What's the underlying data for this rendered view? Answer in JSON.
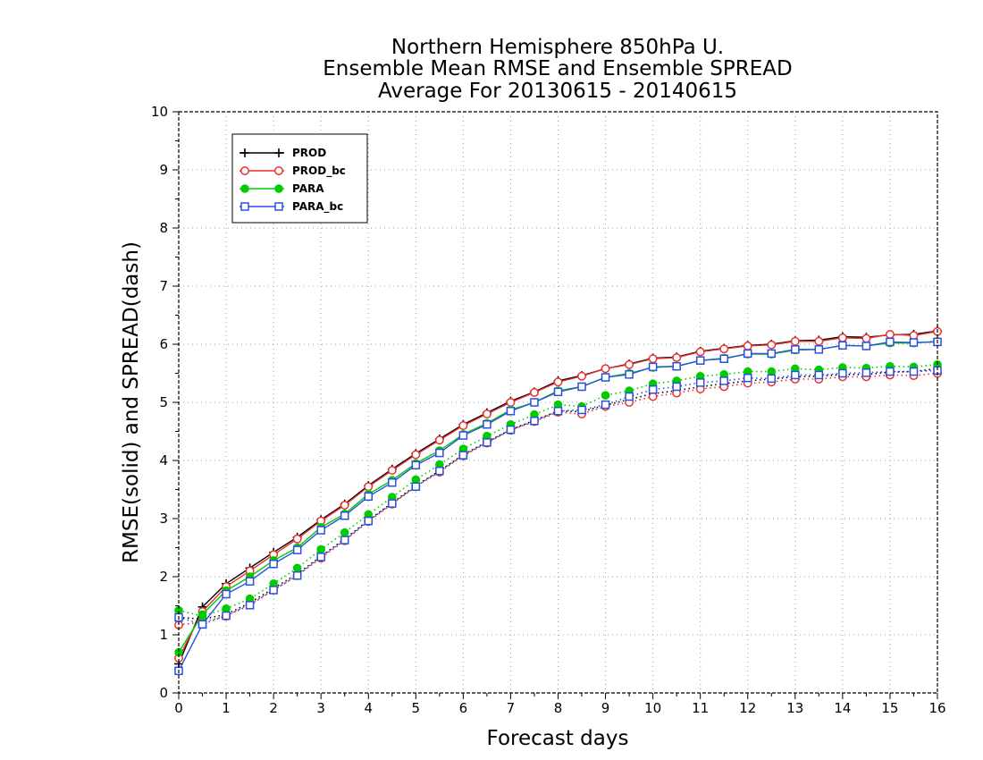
{
  "chart_data": {
    "type": "line",
    "title": [
      "Northern Hemisphere 850hPa U.",
      "Ensemble Mean RMSE and Ensemble SPREAD",
      "Average For 20130615 - 20140615"
    ],
    "xlabel": "Forecast days",
    "ylabel": "RMSE(solid) and SPREAD(dash)",
    "xlim": [
      0,
      16
    ],
    "ylim": [
      0,
      10
    ],
    "xticks": [
      "0",
      "1",
      "2",
      "3",
      "4",
      "5",
      "6",
      "7",
      "8",
      "9",
      "10",
      "11",
      "12",
      "13",
      "14",
      "15",
      "16"
    ],
    "yticks": [
      "0",
      "1",
      "2",
      "3",
      "4",
      "5",
      "6",
      "7",
      "8",
      "9",
      "10"
    ],
    "grid": true,
    "legend_position": "top-left",
    "x": [
      0,
      0.5,
      1,
      1.5,
      2,
      2.5,
      3,
      3.5,
      4,
      4.5,
      5,
      5.5,
      6,
      6.5,
      7,
      7.5,
      8,
      8.5,
      9,
      9.5,
      10,
      10.5,
      11,
      11.5,
      12,
      12.5,
      13,
      13.5,
      14,
      14.5,
      15,
      15.5,
      16
    ],
    "series": [
      {
        "name": "PROD",
        "style": "solid",
        "color": "#000000",
        "marker": "plus",
        "values": [
          0.5,
          1.48,
          1.88,
          2.15,
          2.42,
          2.68,
          2.98,
          3.25,
          3.57,
          3.85,
          4.12,
          4.37,
          4.62,
          4.82,
          5.02,
          5.18,
          5.37,
          5.46,
          5.58,
          5.66,
          5.76,
          5.78,
          5.88,
          5.93,
          5.98,
          6.0,
          6.06,
          6.07,
          6.13,
          6.12,
          6.16,
          6.17,
          6.23
        ]
      },
      {
        "name": "PROD_bc",
        "style": "solid",
        "color": "#e83030",
        "marker": "open-circle",
        "values": [
          0.6,
          1.4,
          1.83,
          2.1,
          2.38,
          2.65,
          2.96,
          3.23,
          3.55,
          3.83,
          4.1,
          4.35,
          4.6,
          4.8,
          5.0,
          5.17,
          5.35,
          5.45,
          5.58,
          5.65,
          5.75,
          5.77,
          5.87,
          5.92,
          5.97,
          5.99,
          6.05,
          6.05,
          6.11,
          6.1,
          6.17,
          6.15,
          6.22
        ]
      },
      {
        "name": "PARA",
        "style": "solid",
        "color": "#00cc00",
        "marker": "filled-circle",
        "values": [
          0.7,
          1.35,
          1.76,
          2.0,
          2.28,
          2.5,
          2.85,
          3.08,
          3.42,
          3.66,
          3.95,
          4.17,
          4.45,
          4.64,
          4.87,
          5.0,
          5.2,
          5.27,
          5.43,
          5.5,
          5.6,
          5.62,
          5.72,
          5.76,
          5.83,
          5.83,
          5.9,
          5.91,
          5.98,
          5.97,
          6.02,
          6.02,
          6.05
        ]
      },
      {
        "name": "PARA_bc",
        "style": "solid",
        "color": "#2b50e0",
        "marker": "open-square",
        "values": [
          0.38,
          1.18,
          1.7,
          1.92,
          2.22,
          2.46,
          2.8,
          3.05,
          3.38,
          3.62,
          3.92,
          4.13,
          4.43,
          4.62,
          4.85,
          5.0,
          5.18,
          5.27,
          5.43,
          5.48,
          5.61,
          5.62,
          5.72,
          5.75,
          5.84,
          5.84,
          5.91,
          5.91,
          5.98,
          5.97,
          6.04,
          6.03,
          6.04
        ]
      },
      {
        "style": "dotted",
        "color": "#000000",
        "marker": "none",
        "values": [
          1.3,
          1.27,
          1.35,
          1.55,
          1.8,
          2.05,
          2.35,
          2.65,
          2.97,
          3.27,
          3.57,
          3.82,
          4.1,
          4.32,
          4.53,
          4.69,
          4.85,
          4.84,
          4.95,
          5.05,
          5.15,
          5.2,
          5.27,
          5.32,
          5.37,
          5.4,
          5.44,
          5.45,
          5.48,
          5.48,
          5.52,
          5.53,
          5.58
        ]
      },
      {
        "style": "dotted",
        "color": "#e83030",
        "marker": "open-circle",
        "values": [
          1.17,
          1.22,
          1.32,
          1.53,
          1.77,
          2.02,
          2.32,
          2.62,
          2.95,
          3.25,
          3.55,
          3.8,
          4.08,
          4.3,
          4.52,
          4.67,
          4.83,
          4.8,
          4.93,
          5.0,
          5.1,
          5.16,
          5.23,
          5.27,
          5.33,
          5.35,
          5.4,
          5.4,
          5.44,
          5.44,
          5.47,
          5.46,
          5.5
        ]
      },
      {
        "style": "dotted",
        "color": "#00cc00",
        "marker": "filled-circle",
        "values": [
          1.42,
          1.32,
          1.45,
          1.62,
          1.88,
          2.15,
          2.47,
          2.76,
          3.07,
          3.37,
          3.67,
          3.93,
          4.2,
          4.42,
          4.62,
          4.79,
          4.96,
          4.93,
          5.12,
          5.2,
          5.32,
          5.37,
          5.45,
          5.48,
          5.53,
          5.53,
          5.58,
          5.56,
          5.6,
          5.59,
          5.62,
          5.61,
          5.65
        ]
      },
      {
        "style": "dotted",
        "color": "#2b50e0",
        "marker": "open-square",
        "values": [
          1.3,
          1.18,
          1.33,
          1.51,
          1.77,
          2.02,
          2.34,
          2.63,
          2.96,
          3.26,
          3.55,
          3.82,
          4.09,
          4.31,
          4.53,
          4.68,
          4.85,
          4.87,
          4.96,
          5.1,
          5.22,
          5.27,
          5.34,
          5.37,
          5.42,
          5.41,
          5.47,
          5.47,
          5.5,
          5.51,
          5.53,
          5.53,
          5.55
        ]
      }
    ]
  }
}
